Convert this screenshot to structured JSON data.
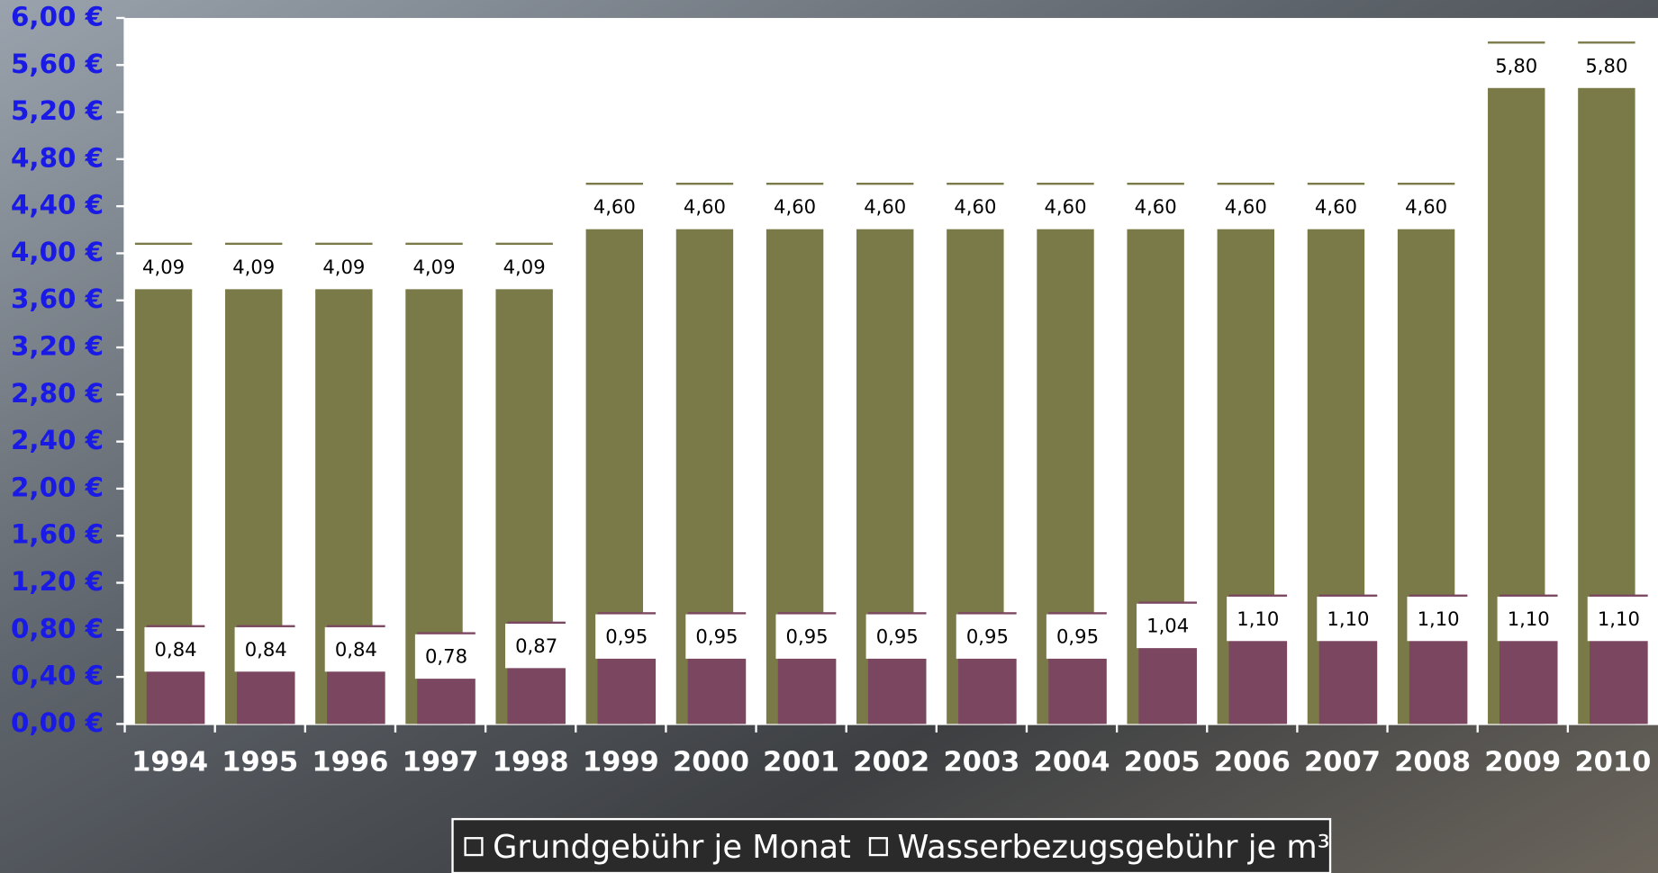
{
  "chart_data": {
    "type": "bar",
    "categories": [
      "1994",
      "1995",
      "1996",
      "1997",
      "1998",
      "1999",
      "2000",
      "2001",
      "2002",
      "2003",
      "2004",
      "2005",
      "2006",
      "2007",
      "2008",
      "2009",
      "2010"
    ],
    "series": [
      {
        "name": "Grundgebühr je Monat",
        "color": "#7a7a48",
        "values": [
          4.09,
          4.09,
          4.09,
          4.09,
          4.09,
          4.6,
          4.6,
          4.6,
          4.6,
          4.6,
          4.6,
          4.6,
          4.6,
          4.6,
          4.6,
          5.8,
          5.8
        ],
        "value_labels": [
          "4,09",
          "4,09",
          "4,09",
          "4,09",
          "4,09",
          "4,60",
          "4,60",
          "4,60",
          "4,60",
          "4,60",
          "4,60",
          "4,60",
          "4,60",
          "4,60",
          "4,60",
          "5,80",
          "5,80"
        ]
      },
      {
        "name": "Wasserbezugsgebühr je m³",
        "color": "#7b4660",
        "values": [
          0.84,
          0.84,
          0.84,
          0.78,
          0.87,
          0.95,
          0.95,
          0.95,
          0.95,
          0.95,
          0.95,
          1.04,
          1.1,
          1.1,
          1.1,
          1.1,
          1.1
        ],
        "value_labels": [
          "0,84",
          "0,84",
          "0,84",
          "0,78",
          "0,87",
          "0,95",
          "0,95",
          "0,95",
          "0,95",
          "0,95",
          "0,95",
          "1,04",
          "1,10",
          "1,10",
          "1,10",
          "1,10",
          "1,10"
        ]
      }
    ],
    "ylim": [
      0,
      6
    ],
    "yticks": [
      {
        "value": 0,
        "label": "0,00 €"
      },
      {
        "value": 0.4,
        "label": "0,40 €"
      },
      {
        "value": 0.8,
        "label": "0,80 €"
      },
      {
        "value": 1.2,
        "label": "1,20 €"
      },
      {
        "value": 1.6,
        "label": "1,60 €"
      },
      {
        "value": 2,
        "label": "2,00 €"
      },
      {
        "value": 2.4,
        "label": "2,40 €"
      },
      {
        "value": 2.8,
        "label": "2,80 €"
      },
      {
        "value": 3.2,
        "label": "3,20 €"
      },
      {
        "value": 3.6,
        "label": "3,60 €"
      },
      {
        "value": 4,
        "label": "4,00 €"
      },
      {
        "value": 4.4,
        "label": "4,40 €"
      },
      {
        "value": 4.8,
        "label": "4,80 €"
      },
      {
        "value": 5.2,
        "label": "5,20 €"
      },
      {
        "value": 5.6,
        "label": "5,60 €"
      },
      {
        "value": 6,
        "label": "6,00 €"
      }
    ],
    "legend": "bottom"
  }
}
